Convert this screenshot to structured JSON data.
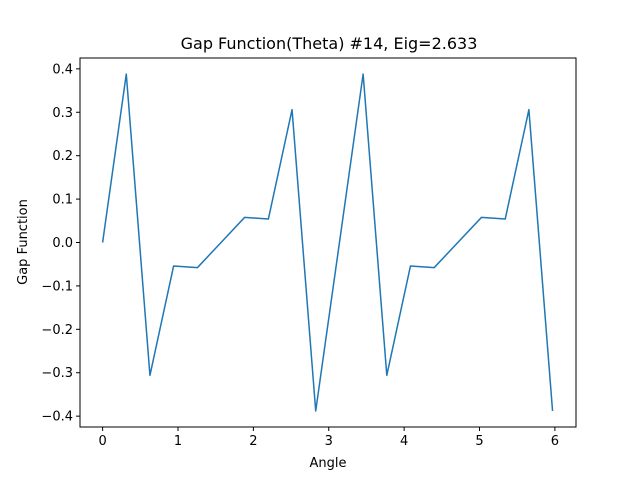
{
  "chart_data": {
    "type": "line",
    "title": "Gap Function(Theta) #14, Eig=2.633",
    "xlabel": "Angle",
    "ylabel": "Gap Function",
    "xlim": [
      -0.3,
      6.28
    ],
    "ylim": [
      -0.425,
      0.425
    ],
    "xticks": [
      0,
      1,
      2,
      3,
      4,
      5,
      6
    ],
    "xtick_labels": [
      "0",
      "1",
      "2",
      "3",
      "4",
      "5",
      "6"
    ],
    "yticks": [
      0.4,
      0.3,
      0.2,
      0.1,
      0.0,
      -0.1,
      -0.2,
      -0.3,
      -0.4
    ],
    "ytick_labels": [
      "0.4",
      "0.3",
      "0.2",
      "0.1",
      "0.0",
      "−0.1",
      "−0.2",
      "−0.3",
      "−0.4"
    ],
    "grid": false,
    "series": [
      {
        "color": "#1f77b4",
        "x": [
          0.0,
          0.314,
          0.628,
          0.942,
          1.257,
          1.571,
          1.885,
          2.199,
          2.513,
          2.827,
          3.142,
          3.456,
          3.77,
          4.084,
          4.398,
          4.712,
          5.027,
          5.341,
          5.655,
          5.969
        ],
        "y": [
          0.0,
          0.388,
          -0.306,
          -0.054,
          -0.058,
          0.0,
          0.058,
          0.054,
          0.306,
          -0.388,
          0.0,
          0.388,
          -0.306,
          -0.054,
          -0.058,
          0.0,
          0.058,
          0.054,
          0.306,
          -0.388
        ]
      }
    ]
  }
}
